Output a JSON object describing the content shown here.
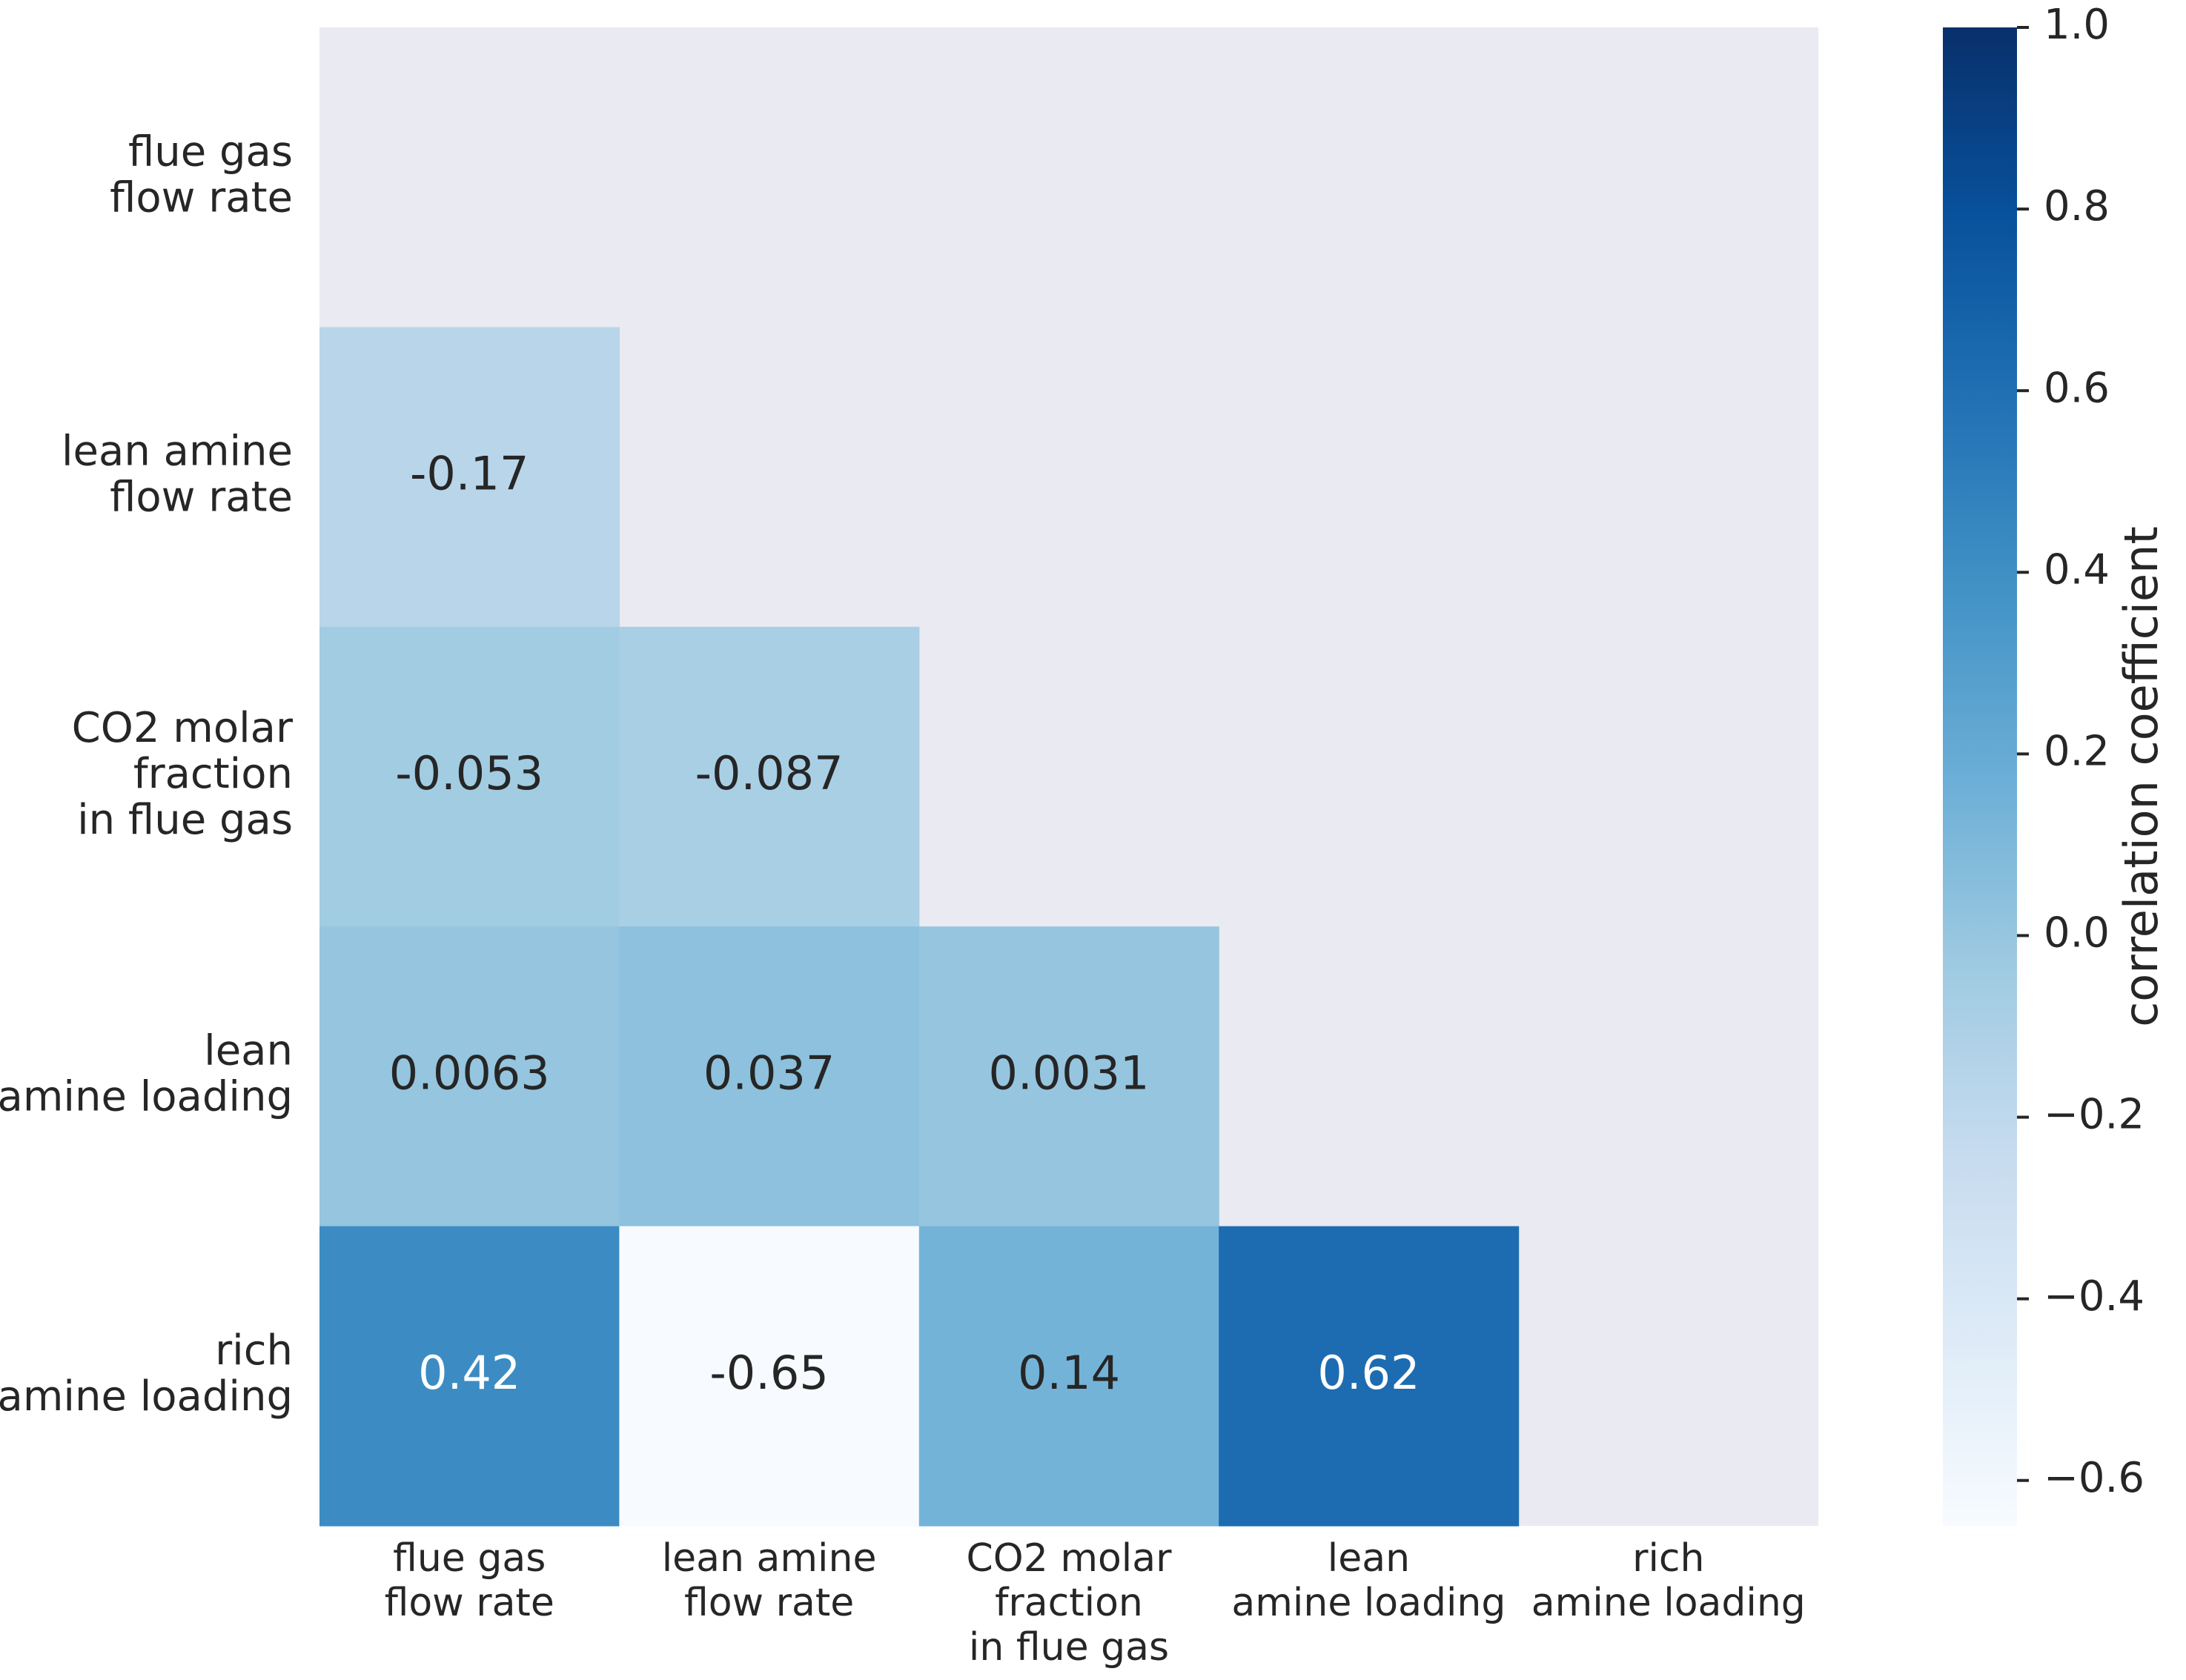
{
  "chart_data": {
    "type": "heatmap",
    "title": "",
    "variables": [
      "flue gas\nflow rate",
      "lean amine\nflow rate",
      "CO2 molar\nfraction\nin flue gas",
      "lean\namine loading",
      "rich\namine loading"
    ],
    "row_labels": [
      [
        "flue gas",
        "flow rate"
      ],
      [
        "lean amine",
        "flow rate"
      ],
      [
        "CO2 molar",
        "fraction",
        "in flue gas"
      ],
      [
        "lean",
        "amine loading"
      ],
      [
        "rich",
        "amine loading"
      ]
    ],
    "col_labels": [
      [
        "flue gas",
        "flow rate"
      ],
      [
        "lean amine",
        "flow rate"
      ],
      [
        "CO2 molar",
        "fraction",
        "in flue gas"
      ],
      [
        "lean",
        "amine loading"
      ],
      [
        "rich",
        "amine loading"
      ]
    ],
    "mask": "upper triangle including diagonal",
    "values": [
      [
        null,
        null,
        null,
        null,
        null
      ],
      [
        -0.17,
        null,
        null,
        null,
        null
      ],
      [
        -0.053,
        -0.087,
        null,
        null,
        null
      ],
      [
        0.0063,
        0.037,
        0.0031,
        null,
        null
      ],
      [
        0.42,
        -0.65,
        0.14,
        0.62,
        null
      ]
    ],
    "value_labels": [
      [
        null,
        null,
        null,
        null,
        null
      ],
      [
        "-0.17",
        null,
        null,
        null,
        null
      ],
      [
        "-0.053",
        "-0.087",
        null,
        null,
        null
      ],
      [
        "0.0063",
        "0.037",
        "0.0031",
        null,
        null
      ],
      [
        "0.42",
        "-0.65",
        "0.14",
        "0.62",
        null
      ]
    ],
    "colormap": "Blues",
    "vmin": -0.65,
    "vmax": 1.0,
    "colorbar": {
      "label": "correlation coefficient",
      "ticks": [
        -0.6,
        -0.4,
        -0.2,
        0.0,
        0.2,
        0.4,
        0.6,
        0.8,
        1.0
      ],
      "tick_labels": [
        "−0.6",
        "−0.4",
        "−0.2",
        "0.0",
        "0.2",
        "0.4",
        "0.6",
        "0.8",
        "1.0"
      ]
    },
    "colors": {
      "background": "#eaeaf2",
      "text_dark": "#262626",
      "text_light": "#ffffff"
    }
  }
}
